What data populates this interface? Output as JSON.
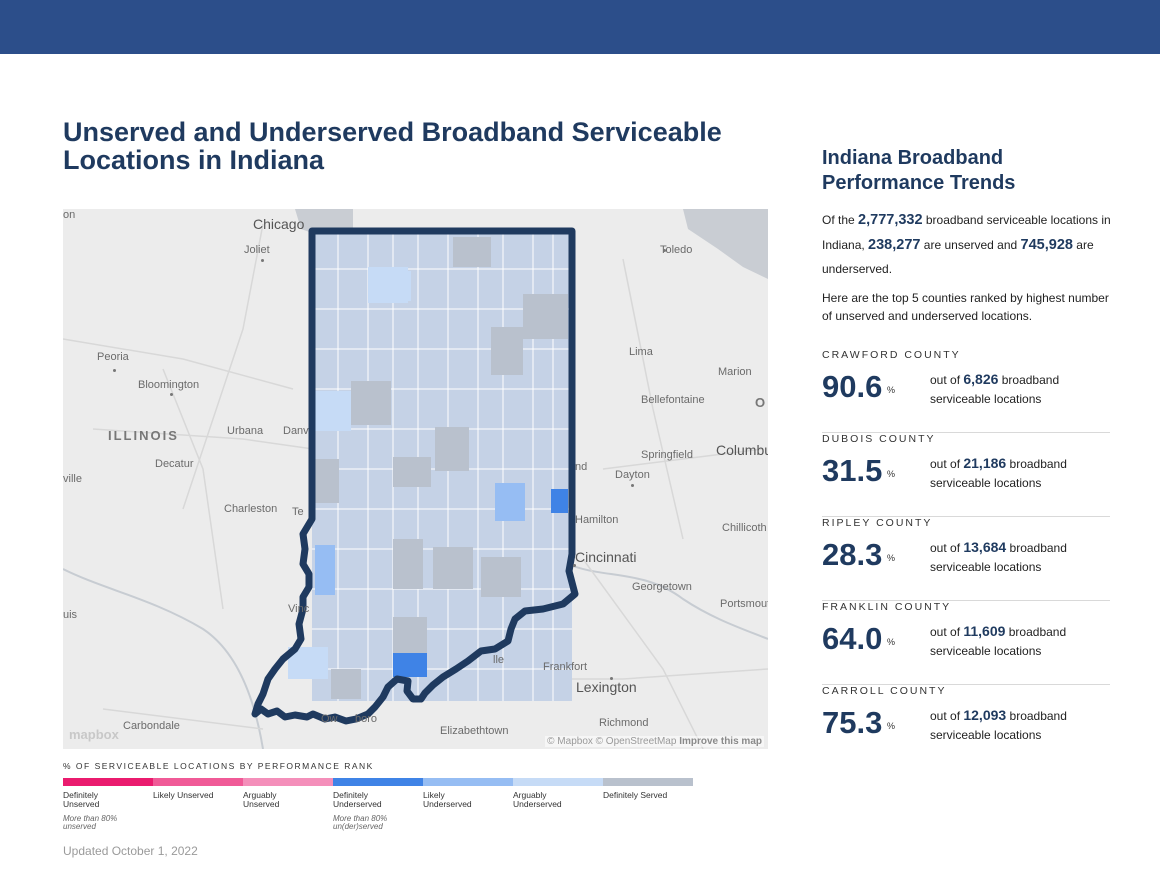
{
  "title": "Unserved and Underserved Broadband Serviceable Locations in Indiana",
  "map": {
    "labels": [
      {
        "text": "Chicago",
        "kind": "big"
      },
      {
        "text": "Joliet",
        "kind": "city"
      },
      {
        "text": "Toledo",
        "kind": "city"
      },
      {
        "text": "Peoria",
        "kind": "city"
      },
      {
        "text": "Bloomington",
        "kind": "city"
      },
      {
        "text": "Lima",
        "kind": "city"
      },
      {
        "text": "Marion",
        "kind": "city"
      },
      {
        "text": "Bellefontaine",
        "kind": "city"
      },
      {
        "text": "ILLINOIS",
        "kind": "state"
      },
      {
        "text": "Urbana",
        "kind": "city"
      },
      {
        "text": "Danv",
        "kind": "city"
      },
      {
        "text": "Decatur",
        "kind": "city"
      },
      {
        "text": "Springfield",
        "kind": "city"
      },
      {
        "text": "Columbu",
        "kind": "big"
      },
      {
        "text": "Dayton",
        "kind": "city"
      },
      {
        "text": "Charleston",
        "kind": "city"
      },
      {
        "text": "Hamilton",
        "kind": "city"
      },
      {
        "text": "Chillicoth",
        "kind": "city"
      },
      {
        "text": "Cincinnati",
        "kind": "big"
      },
      {
        "text": "Georgetown",
        "kind": "city"
      },
      {
        "text": "Portsmout",
        "kind": "city"
      },
      {
        "text": "Frankfort",
        "kind": "city"
      },
      {
        "text": "Lexington",
        "kind": "big"
      },
      {
        "text": "Richmond",
        "kind": "city"
      },
      {
        "text": "Carbondale",
        "kind": "city"
      },
      {
        "text": "Elizabethtown",
        "kind": "city"
      },
      {
        "text": "Vinc",
        "kind": "city"
      },
      {
        "text": "Te",
        "kind": "city"
      },
      {
        "text": "lle",
        "kind": "city"
      },
      {
        "text": "Ow",
        "kind": "city"
      },
      {
        "text": "boro",
        "kind": "city"
      },
      {
        "text": "uis",
        "kind": "city"
      },
      {
        "text": "ville",
        "kind": "city"
      },
      {
        "text": "on",
        "kind": "city"
      },
      {
        "text": "O",
        "kind": "state"
      },
      {
        "text": "nd",
        "kind": "city"
      }
    ],
    "logo": "mapbox",
    "attribution": "© Mapbox © OpenStreetMap",
    "improve_link": "Improve this map"
  },
  "legend": {
    "title": "% OF SERVICEABLE LOCATIONS BY PERFORMANCE RANK",
    "items": [
      {
        "label": "Definitely Unserved",
        "color": "#ea1b6e",
        "note": "More than 80% unserved"
      },
      {
        "label": "Likely Unserved",
        "color": "#f05a97",
        "note": ""
      },
      {
        "label": "Arguably Unserved",
        "color": "#f48fba",
        "note": ""
      },
      {
        "label": "Definitely Underserved",
        "color": "#3f83e6",
        "note": "More than 80% un(der)served"
      },
      {
        "label": "Likely Underserved",
        "color": "#96bdf3",
        "note": ""
      },
      {
        "label": "Arguably Underserved",
        "color": "#c6dbf6",
        "note": ""
      },
      {
        "label": "Definitely Served",
        "color": "#b9c1cd",
        "note": ""
      }
    ]
  },
  "updated": "Updated October 1, 2022",
  "sidebar": {
    "title": "Indiana Broadband Performance Trends",
    "summary": {
      "t1": "Of the ",
      "total": "2,777,332",
      "t2": " broadband serviceable locations in Indiana, ",
      "unserved": "238,277",
      "t3": " are unserved and ",
      "underserved": "745,928",
      "t4": " are underserved."
    },
    "intro": "Here are the top 5 counties ranked by highest number of unserved and underserved locations.",
    "pct_sign": "%",
    "out_of": "out of ",
    "suffix": " broadband serviceable locations",
    "counties": [
      {
        "name": "CRAWFORD COUNTY",
        "pct": "90.6",
        "total": "6,826"
      },
      {
        "name": "DUBOIS COUNTY",
        "pct": "31.5",
        "total": "21,186"
      },
      {
        "name": "RIPLEY COUNTY",
        "pct": "28.3",
        "total": "13,684"
      },
      {
        "name": "FRANKLIN COUNTY",
        "pct": "64.0",
        "total": "11,609"
      },
      {
        "name": "CARROLL COUNTY",
        "pct": "75.3",
        "total": "12,093"
      }
    ]
  },
  "colors": {
    "topbar": "#2c4e8a",
    "title": "#1f3a5f",
    "map_background": "#ececec",
    "lake": "#c9cdd3",
    "indiana_border": "#1f3a5f",
    "county_served": "#b9c1cd",
    "county_arguably_underserved": "#c6dbf6",
    "county_likely_underserved": "#96bdf3",
    "county_definitely_underserved": "#3f83e6"
  }
}
